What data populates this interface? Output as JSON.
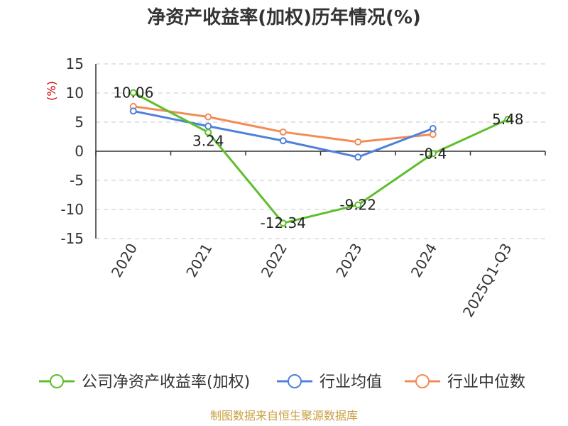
{
  "chart_data": {
    "type": "line",
    "title": "净资产收益率(加权)历年情况(%)",
    "ylabel": "(%)",
    "xlabel": "",
    "categories": [
      "2020",
      "2021",
      "2022",
      "2023",
      "2024",
      "2025Q1-Q3"
    ],
    "ylim": [
      -15,
      15
    ],
    "yticks": [
      15,
      10,
      5,
      0,
      -5,
      -10,
      -15
    ],
    "grid": true,
    "legend_position": "bottom",
    "series": [
      {
        "name": "公司净资产收益率(加权)",
        "color": "#5dbf2b",
        "values": [
          10.06,
          3.24,
          -12.34,
          -9.22,
          -0.4,
          5.48
        ],
        "labels": [
          "10.06",
          "3.24",
          "-12.34",
          "-9.22",
          "-0.4",
          "5.48"
        ]
      },
      {
        "name": "行业均值",
        "color": "#4e80dc",
        "values": [
          6.9,
          4.3,
          1.8,
          -1.0,
          3.9,
          null
        ]
      },
      {
        "name": "行业中位数",
        "color": "#f28c57",
        "values": [
          7.7,
          5.9,
          3.3,
          1.6,
          2.9,
          null
        ]
      }
    ]
  },
  "source": "制图数据来自恒生聚源数据库"
}
